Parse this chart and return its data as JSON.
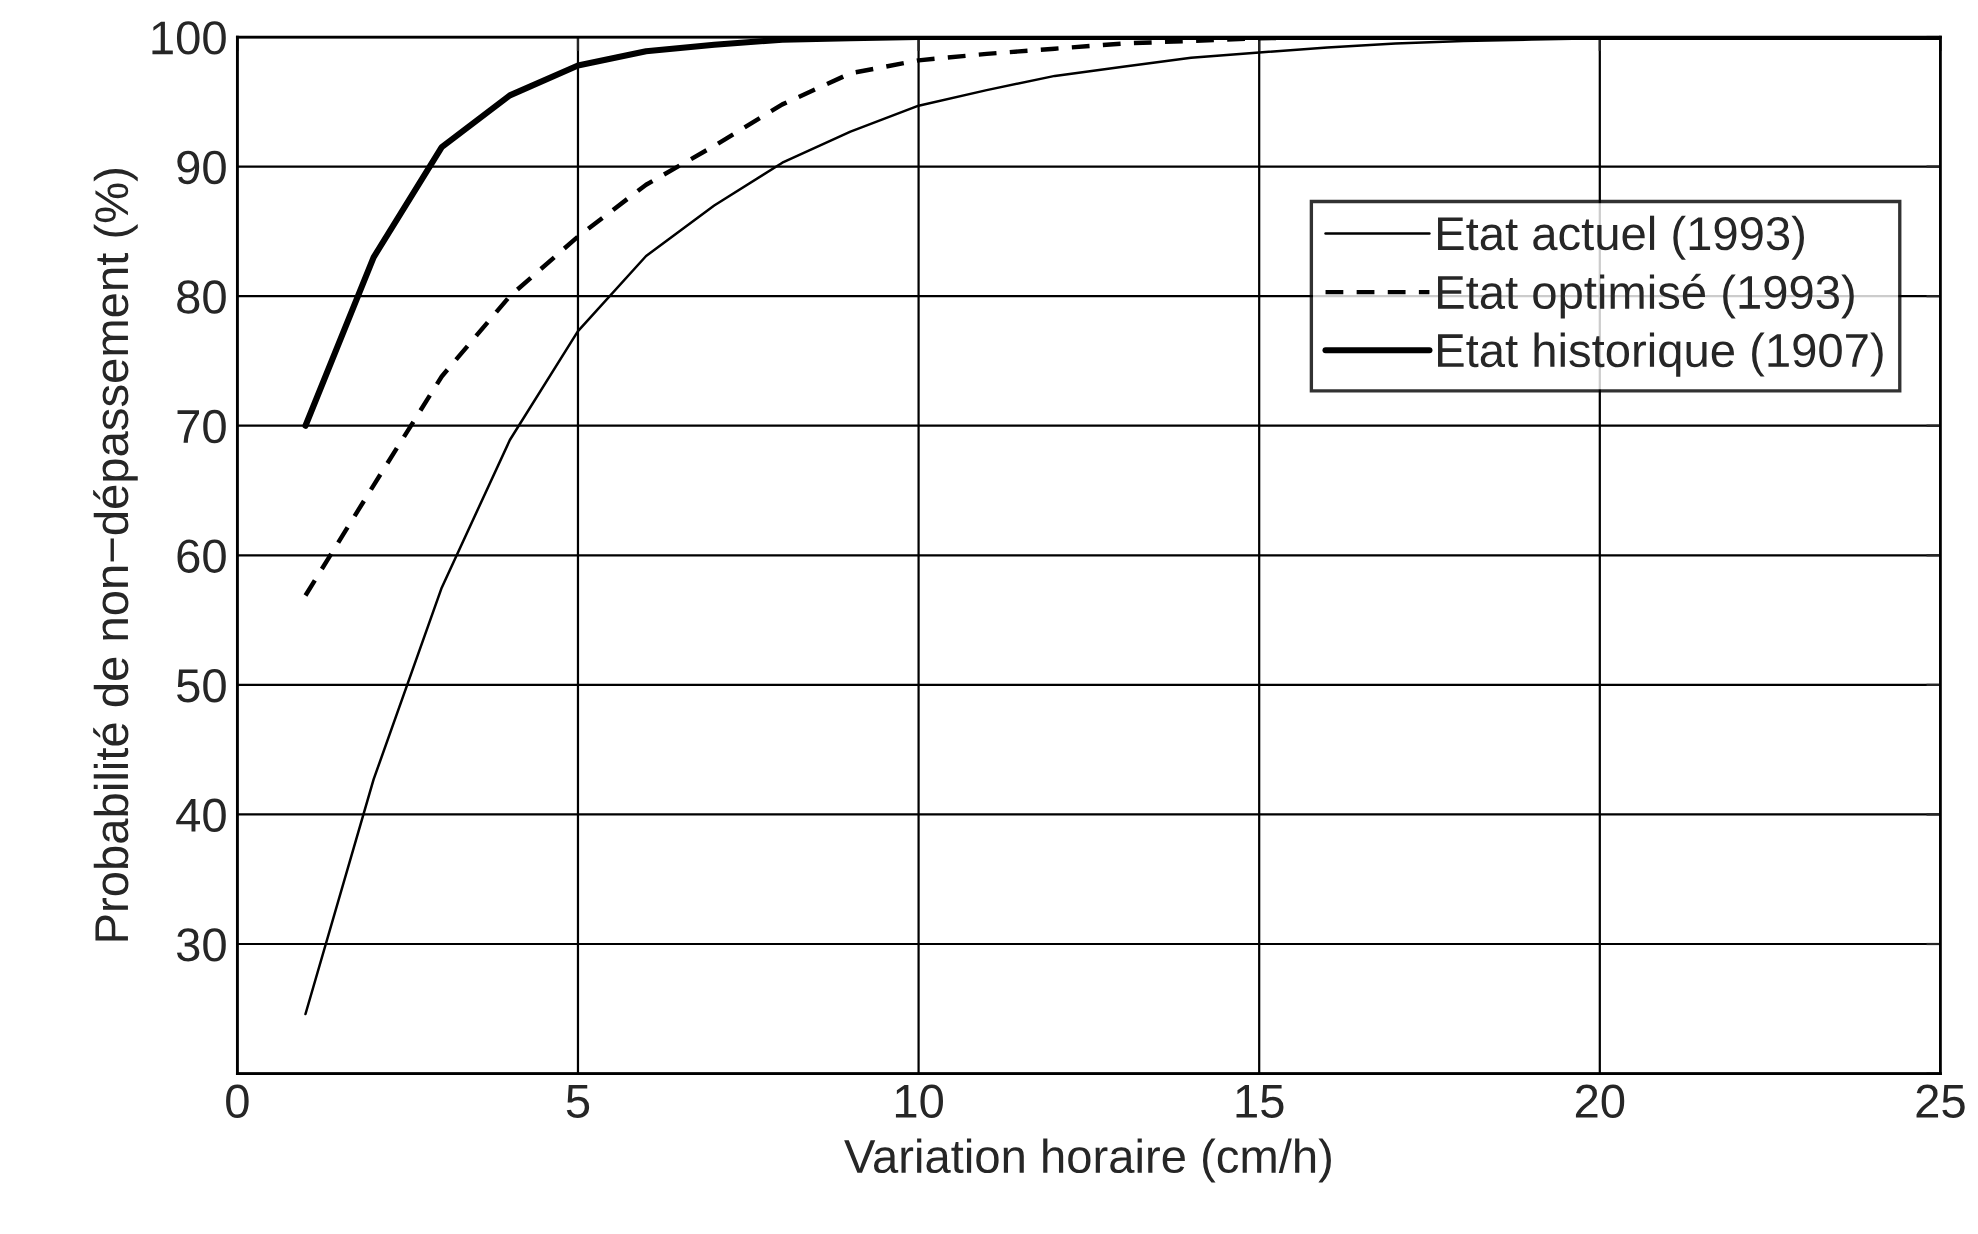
{
  "chart_data": {
    "type": "line",
    "xlabel": "Variation horaire (cm/h)",
    "ylabel": "Probabilité de non−dépassement (%)",
    "x": [
      1,
      2,
      3,
      4,
      5,
      6,
      7,
      8,
      9,
      10,
      11,
      12,
      13,
      14,
      15,
      16,
      17,
      18,
      19,
      20,
      21,
      22,
      23,
      24,
      25
    ],
    "series": [
      {
        "name": "Etat actuel (1993)",
        "color": "#000000",
        "line_style": "solid",
        "values": [
          24.6,
          42.7,
          57.5,
          68.9,
          77.3,
          83.1,
          87,
          90.3,
          92.7,
          94.7,
          95.9,
          97,
          97.7,
          98.4,
          98.8,
          99.2,
          99.5,
          99.7,
          99.8,
          99.9,
          100,
          100,
          100,
          100,
          100
        ]
      },
      {
        "name": "Etat optimisé (1993)",
        "color": "#000000",
        "line_style": "dashed",
        "values": [
          56.9,
          65.4,
          73.8,
          80,
          84.6,
          88.6,
          91.6,
          94.8,
          97.2,
          98.2,
          98.7,
          99.1,
          99.5,
          99.7,
          99.9,
          100,
          100,
          100,
          100,
          100,
          100,
          100,
          100,
          100,
          100
        ]
      },
      {
        "name": "Etat historique (1907)",
        "color": "#000000",
        "line_style": "solid",
        "values": [
          70,
          83,
          91.5,
          95.5,
          97.8,
          98.9,
          99.4,
          99.8,
          99.9,
          100,
          100,
          100,
          100,
          100,
          100,
          100,
          100,
          100,
          100,
          100,
          100,
          100,
          100,
          100,
          100
        ]
      }
    ],
    "xlim": [
      0,
      25
    ],
    "xticks": [
      0,
      5,
      10,
      15,
      20,
      25
    ],
    "ylim": [
      20,
      100
    ],
    "yticks": [
      {
        "value": 20,
        "label": null
      },
      30,
      40,
      50,
      60,
      70,
      80,
      90,
      100
    ],
    "grid": true,
    "legend": "right"
  }
}
